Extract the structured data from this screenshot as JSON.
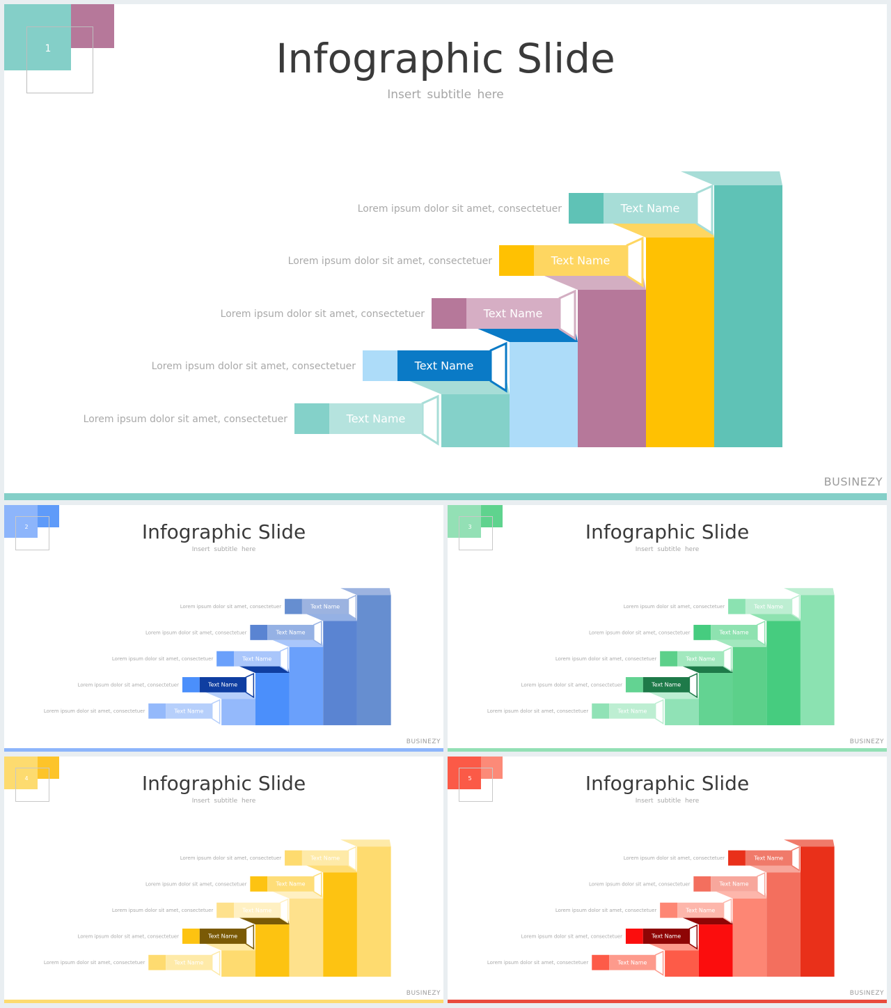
{
  "slides": [
    {
      "number": "1",
      "title": "Infographic Slide",
      "subtitle": "Insert  subtitle  here",
      "brand": "BUSINEZY",
      "colors": {
        "corner_a": "#84cfc8",
        "corner_b": "#b6789a",
        "bar": "#84cfc8",
        "steps": [
          {
            "side": "#84d1c9",
            "tab": "#84d1c9",
            "label": "#b5e3de",
            "top": "#a7ddd7"
          },
          {
            "side": "#addcf9",
            "tab": "#addcf9",
            "label": "#0a7ac6",
            "top": "#0a7ac6"
          },
          {
            "side": "#b6789a",
            "tab": "#b6789a",
            "label": "#d6aec4",
            "top": "#d3aec2"
          },
          {
            "side": "#ffc102",
            "tab": "#ffc102",
            "label": "#fed661",
            "top": "#fed661"
          },
          {
            "side": "#5fc2b6",
            "tab": "#5fc2b6",
            "label": "#a7ddd7",
            "top": "#a7ddd7"
          }
        ]
      },
      "steps": [
        {
          "label": "Text Name",
          "desc": "Lorem  ipsum  dolor  sit amet,  consectetuer"
        },
        {
          "label": "Text Name",
          "desc": "Lorem  ipsum  dolor  sit amet,  consectetuer"
        },
        {
          "label": "Text Name",
          "desc": "Lorem  ipsum  dolor  sit amet,  consectetuer"
        },
        {
          "label": "Text Name",
          "desc": "Lorem  ipsum  dolor  sit amet,  consectetuer"
        },
        {
          "label": "Text Name",
          "desc": "Lorem  ipsum  dolor  sit amet,  consectetuer"
        }
      ]
    },
    {
      "number": "2",
      "title": "Infographic Slide",
      "subtitle": "Insert  subtitle  here",
      "brand": "BUSINEZY",
      "colors": {
        "corner_a": "#8db5fb",
        "corner_b": "#5f9bf9",
        "bar": "#8db5fb",
        "steps": [
          {
            "side": "#94b9fb",
            "tab": "#94b9fb",
            "label": "#b6cffb",
            "top": "#b6cffb"
          },
          {
            "side": "#4b8ffb",
            "tab": "#4b8ffb",
            "label": "#0f3ea1",
            "top": "#0f3ea1"
          },
          {
            "side": "#6aa0fb",
            "tab": "#6aa0fb",
            "label": "#a9c6fb",
            "top": "#a9c6fb"
          },
          {
            "side": "#5a84d2",
            "tab": "#5a84d2",
            "label": "#95b1e4",
            "top": "#95b1e4"
          },
          {
            "side": "#668ed0",
            "tab": "#668ed0",
            "label": "#9cb3e0",
            "top": "#9cb3e0"
          }
        ]
      },
      "steps": [
        {
          "label": "Text Name",
          "desc": "Lorem  ipsum  dolor  sit amet,  consectetuer"
        },
        {
          "label": "Text Name",
          "desc": "Lorem  ipsum  dolor  sit amet,  consectetuer"
        },
        {
          "label": "Text Name",
          "desc": "Lorem  ipsum  dolor  sit amet,  consectetuer"
        },
        {
          "label": "Text Name",
          "desc": "Lorem  ipsum  dolor  sit amet,  consectetuer"
        },
        {
          "label": "Text Name",
          "desc": "Lorem  ipsum  dolor  sit amet,  consectetuer"
        }
      ]
    },
    {
      "number": "3",
      "title": "Infographic Slide",
      "subtitle": "Insert  subtitle  here",
      "brand": "BUSINEZY",
      "colors": {
        "corner_a": "#93e0b5",
        "corner_b": "#5fd38e",
        "bar": "#93e0b5",
        "steps": [
          {
            "side": "#90e2b6",
            "tab": "#90e2b6",
            "label": "#bdeed2",
            "top": "#bdeed2"
          },
          {
            "side": "#63d392",
            "tab": "#63d392",
            "label": "#1e7a49",
            "top": "#1e7a49"
          },
          {
            "side": "#5cd08a",
            "tab": "#5cd08a",
            "label": "#a2e8be",
            "top": "#a2e8be"
          },
          {
            "side": "#46cc7f",
            "tab": "#46cc7f",
            "label": "#8ee2b0",
            "top": "#8ee2b0"
          },
          {
            "side": "#8be2b1",
            "tab": "#8be2b1",
            "label": "#bdeed2",
            "top": "#bdeed2"
          }
        ]
      },
      "steps": [
        {
          "label": "Text Name",
          "desc": "Lorem  ipsum  dolor  sit amet,  consectetuer"
        },
        {
          "label": "Text Name",
          "desc": "Lorem  ipsum  dolor  sit amet,  consectetuer"
        },
        {
          "label": "Text Name",
          "desc": "Lorem  ipsum  dolor  sit amet,  consectetuer"
        },
        {
          "label": "Text Name",
          "desc": "Lorem  ipsum  dolor  sit amet,  consectetuer"
        },
        {
          "label": "Text Name",
          "desc": "Lorem  ipsum  dolor  sit amet,  consectetuer"
        }
      ]
    },
    {
      "number": "4",
      "title": "Infographic Slide",
      "subtitle": "Insert  subtitle  here",
      "brand": "BUSINEZY",
      "colors": {
        "corner_a": "#fddb6f",
        "corner_b": "#fdc429",
        "bar": "#fddb6f",
        "steps": [
          {
            "side": "#fedb70",
            "tab": "#fedb70",
            "label": "#feeaa8",
            "top": "#feeaa8"
          },
          {
            "side": "#fdc311",
            "tab": "#fdc311",
            "label": "#7a5a06",
            "top": "#7a5a06"
          },
          {
            "side": "#fee18c",
            "tab": "#fee18c",
            "label": "#fff0c2",
            "top": "#fff0c2"
          },
          {
            "side": "#fdc312",
            "tab": "#fdc312",
            "label": "#fedd78",
            "top": "#fedd78"
          },
          {
            "side": "#fedb6f",
            "tab": "#fedb6f",
            "label": "#feeaa8",
            "top": "#feeaa8"
          }
        ]
      },
      "steps": [
        {
          "label": "Text Name",
          "desc": "Lorem  ipsum  dolor  sit amet,  consectetuer"
        },
        {
          "label": "Text Name",
          "desc": "Lorem  ipsum  dolor  sit amet,  consectetuer"
        },
        {
          "label": "Text Name",
          "desc": "Lorem  ipsum  dolor  sit amet,  consectetuer"
        },
        {
          "label": "Text Name",
          "desc": "Lorem  ipsum  dolor  sit amet,  consectetuer"
        },
        {
          "label": "Text Name",
          "desc": "Lorem  ipsum  dolor  sit amet,  consectetuer"
        }
      ]
    },
    {
      "number": "5",
      "title": "Infographic Slide",
      "subtitle": "Insert  subtitle  here",
      "brand": "BUSINEZY",
      "colors": {
        "corner_a": "#fb5a47",
        "corner_b": "#fc8a78",
        "bar": "#e94b3d",
        "steps": [
          {
            "side": "#fd5b48",
            "tab": "#fd5b48",
            "label": "#fd9a8c",
            "top": "#fd9a8c"
          },
          {
            "side": "#fb0d0d",
            "tab": "#fb0d0d",
            "label": "#8e0505",
            "top": "#8e0505"
          },
          {
            "side": "#fd8674",
            "tab": "#fd8674",
            "label": "#fdb6ab",
            "top": "#fdb6ab"
          },
          {
            "side": "#f36f5e",
            "tab": "#f36f5e",
            "label": "#f7a79c",
            "top": "#f7a79c"
          },
          {
            "side": "#e9301a",
            "tab": "#e9301a",
            "label": "#f07a6a",
            "top": "#f07a6a"
          }
        ]
      },
      "steps": [
        {
          "label": "Text Name",
          "desc": "Lorem  ipsum  dolor  sit amet,  consectetuer"
        },
        {
          "label": "Text Name",
          "desc": "Lorem  ipsum  dolor  sit amet,  consectetuer"
        },
        {
          "label": "Text Name",
          "desc": "Lorem  ipsum  dolor  sit amet,  consectetuer"
        },
        {
          "label": "Text Name",
          "desc": "Lorem  ipsum  dolor  sit amet,  consectetuer"
        },
        {
          "label": "Text Name",
          "desc": "Lorem  ipsum  dolor  sit amet,  consectetuer"
        }
      ]
    }
  ]
}
